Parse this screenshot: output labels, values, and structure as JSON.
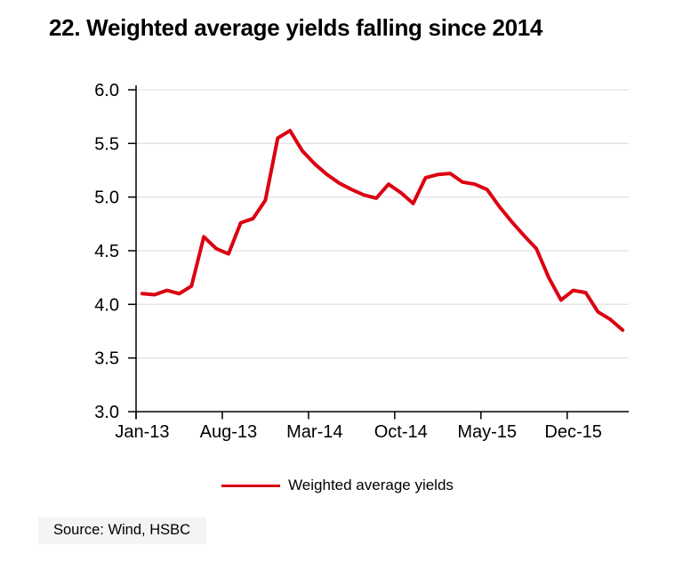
{
  "title": "22. Weighted average yields falling since 2014",
  "legend": {
    "label": "Weighted average yields",
    "color": "#DB0011"
  },
  "source": "Source: Wind, HSBC",
  "colors": {
    "line": "#DB0011",
    "grid": "#E3E3E3",
    "axis": "#000000",
    "text": "#000000",
    "source_bg": "#F4F4F4"
  },
  "chart_data": {
    "type": "line",
    "title": "22. Weighted average yields falling since 2014",
    "xlabel": "",
    "ylabel": "",
    "grid": "horizontal",
    "legend_position": "bottom",
    "ylim": [
      3.0,
      6.0
    ],
    "y_tick_labels": [
      "3.0",
      "3.5",
      "4.0",
      "4.5",
      "5.0",
      "5.5",
      "6.0"
    ],
    "x_tick_labels": [
      "Jan-13",
      "Aug-13",
      "Mar-14",
      "Oct-14",
      "May-15",
      "Dec-15"
    ],
    "x_tick_every_months": 7,
    "x": [
      "Jan-13",
      "Feb-13",
      "Mar-13",
      "Apr-13",
      "May-13",
      "Jun-13",
      "Jul-13",
      "Aug-13",
      "Sep-13",
      "Oct-13",
      "Nov-13",
      "Dec-13",
      "Jan-14",
      "Feb-14",
      "Mar-14",
      "Apr-14",
      "May-14",
      "Jun-14",
      "Jul-14",
      "Aug-14",
      "Sep-14",
      "Oct-14",
      "Nov-14",
      "Dec-14",
      "Jan-15",
      "Feb-15",
      "Mar-15",
      "Apr-15",
      "May-15",
      "Jun-15",
      "Jul-15",
      "Aug-15",
      "Sep-15",
      "Oct-15",
      "Nov-15",
      "Dec-15",
      "Jan-16",
      "Feb-16",
      "Mar-16",
      "Apr-16"
    ],
    "series": [
      {
        "name": "Weighted average yields",
        "color": "#DB0011",
        "values": [
          4.1,
          4.09,
          4.13,
          4.1,
          4.17,
          4.63,
          4.52,
          4.47,
          4.76,
          4.8,
          4.97,
          5.55,
          5.62,
          5.43,
          5.31,
          5.21,
          5.13,
          5.07,
          5.02,
          4.99,
          5.12,
          5.04,
          4.94,
          5.18,
          5.21,
          5.22,
          5.14,
          5.12,
          5.07,
          4.91,
          4.77,
          4.64,
          4.52,
          4.25,
          4.04,
          4.13,
          4.11,
          3.93,
          3.86,
          3.76
        ]
      }
    ]
  }
}
